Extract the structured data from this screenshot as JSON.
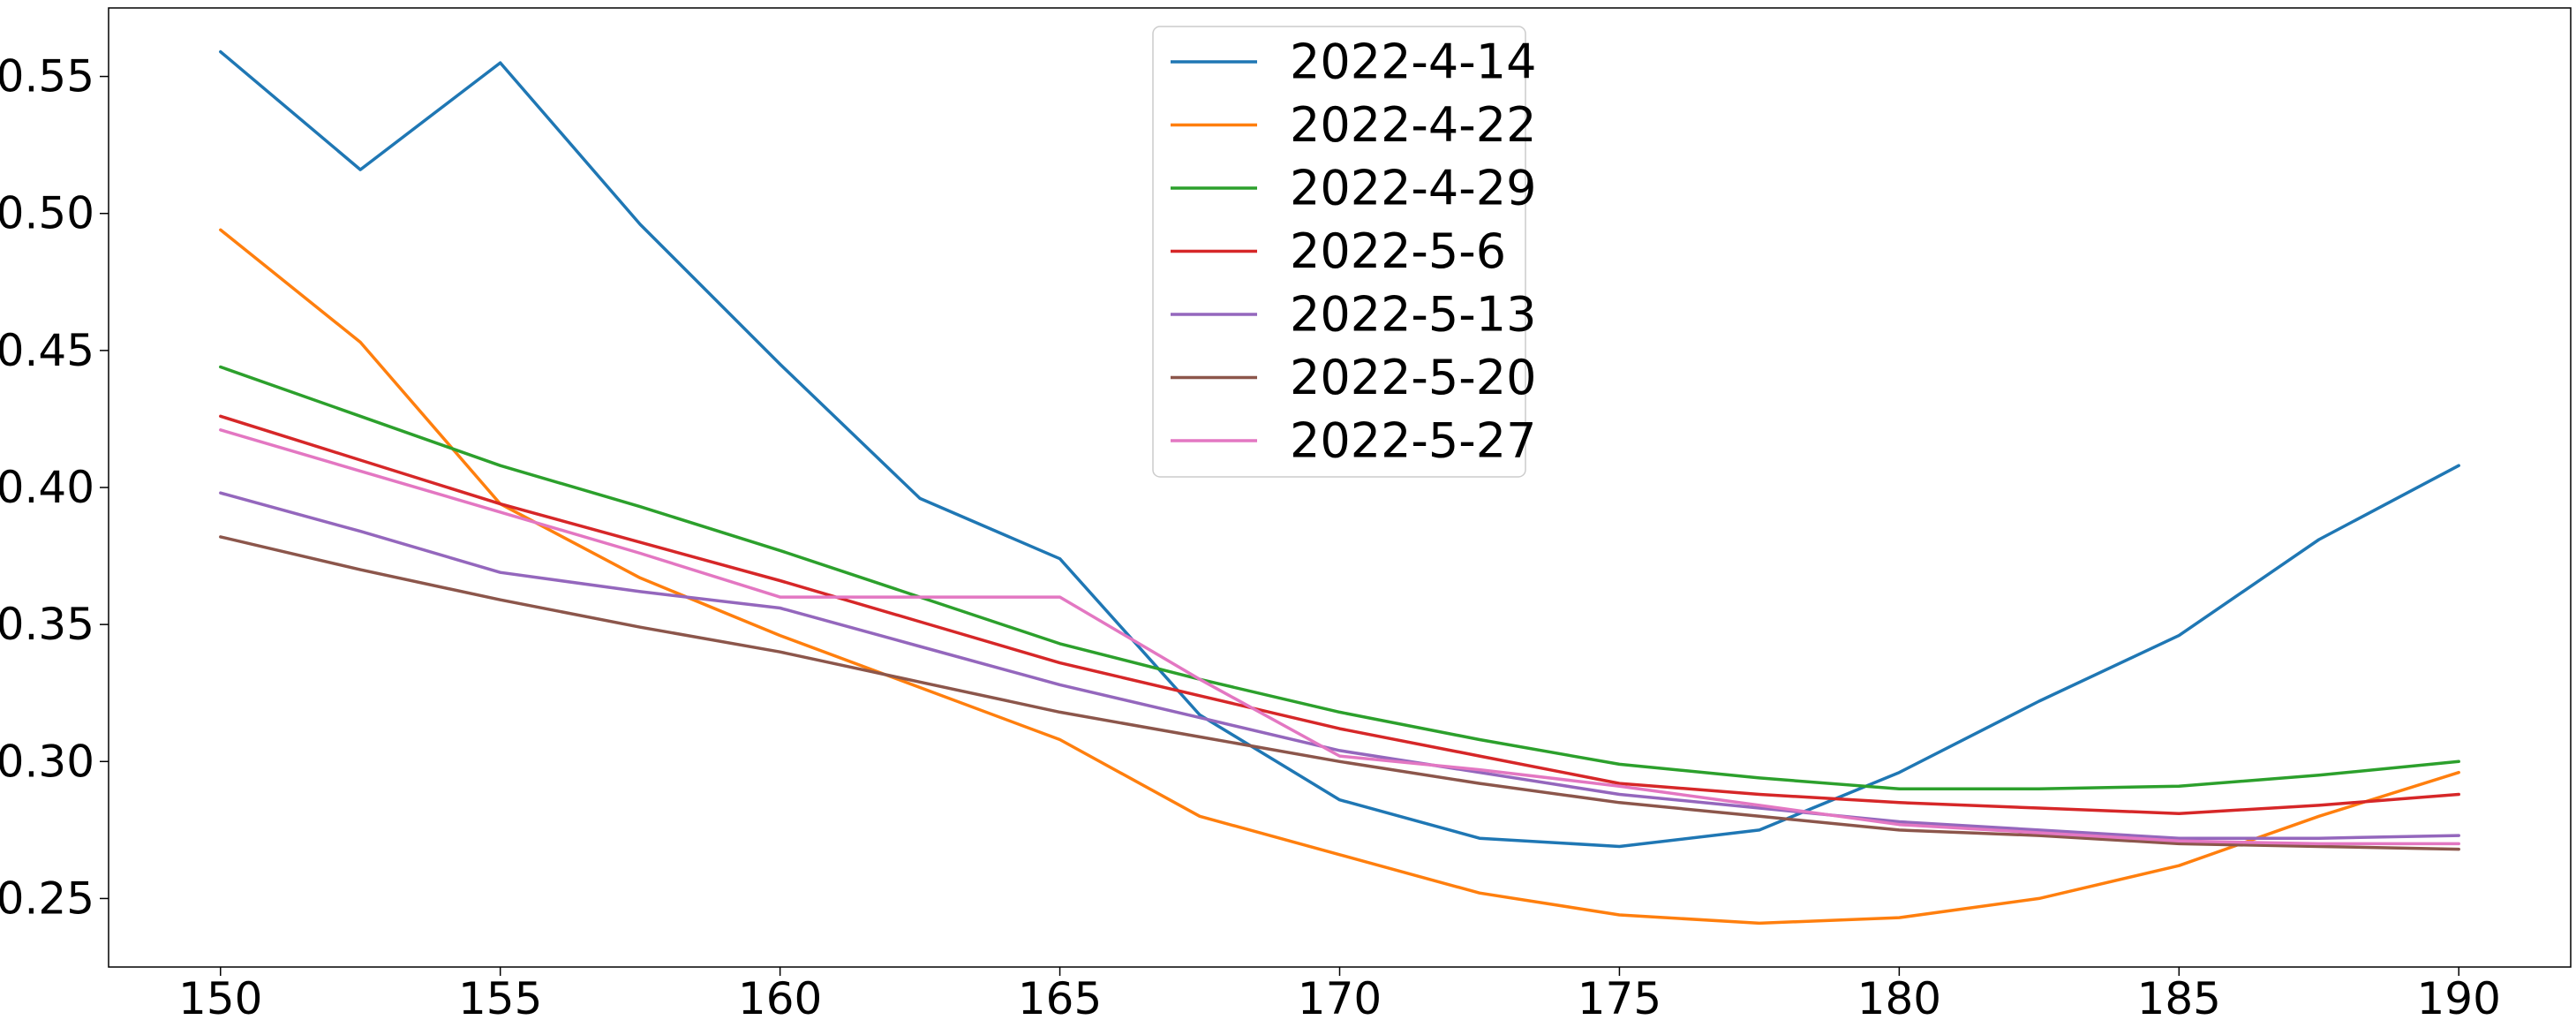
{
  "chart_data": {
    "type": "line",
    "title": "",
    "xlabel": "",
    "ylabel": "",
    "xlim": [
      148,
      192
    ],
    "ylim": [
      0.225,
      0.575
    ],
    "xticks": [
      150,
      155,
      160,
      165,
      170,
      175,
      180,
      185,
      190
    ],
    "yticks": [
      0.25,
      0.3,
      0.35,
      0.4,
      0.45,
      0.5,
      0.55
    ],
    "ytick_labels": [
      "0.25",
      "0.30",
      "0.35",
      "0.40",
      "0.45",
      "0.50",
      "0.55"
    ],
    "grid": false,
    "legend_position": "upper center",
    "x": [
      150,
      152.5,
      155,
      157.5,
      160,
      162.5,
      165,
      167.5,
      170,
      172.5,
      175,
      177.5,
      180,
      182.5,
      185,
      187.5,
      190
    ],
    "series": [
      {
        "name": "2022-4-14",
        "color": "#1f77b4",
        "values": [
          0.559,
          0.516,
          0.555,
          0.496,
          0.445,
          0.396,
          0.374,
          0.317,
          0.286,
          0.272,
          0.269,
          0.275,
          0.296,
          0.322,
          0.346,
          0.381,
          0.408
        ]
      },
      {
        "name": "2022-4-22",
        "color": "#ff7f0e",
        "values": [
          0.494,
          0.453,
          0.394,
          0.367,
          0.346,
          0.327,
          0.308,
          0.28,
          0.266,
          0.252,
          0.244,
          0.241,
          0.243,
          0.25,
          0.262,
          0.28,
          0.296
        ]
      },
      {
        "name": "2022-4-29",
        "color": "#2ca02c",
        "values": [
          0.444,
          0.426,
          0.408,
          0.393,
          0.377,
          0.36,
          0.343,
          0.33,
          0.318,
          0.308,
          0.299,
          0.294,
          0.29,
          0.29,
          0.291,
          0.295,
          0.3
        ]
      },
      {
        "name": "2022-5-6",
        "color": "#d62728",
        "values": [
          0.426,
          0.41,
          0.394,
          0.38,
          0.366,
          0.351,
          0.336,
          0.324,
          0.312,
          0.302,
          0.292,
          0.288,
          0.285,
          0.283,
          0.281,
          0.284,
          0.288
        ]
      },
      {
        "name": "2022-5-13",
        "color": "#9467bd",
        "values": [
          0.398,
          0.384,
          0.369,
          0.362,
          0.356,
          0.342,
          0.328,
          0.316,
          0.304,
          0.296,
          0.288,
          0.283,
          0.278,
          0.275,
          0.272,
          0.272,
          0.273
        ]
      },
      {
        "name": "2022-5-20",
        "color": "#8c564b",
        "values": [
          0.382,
          0.37,
          0.359,
          0.349,
          0.34,
          0.329,
          0.318,
          0.309,
          0.3,
          0.292,
          0.285,
          0.28,
          0.275,
          0.273,
          0.27,
          0.269,
          0.268
        ]
      },
      {
        "name": "2022-5-27",
        "color": "#e377c2",
        "values": [
          0.421,
          0.406,
          0.391,
          0.376,
          0.36,
          0.36,
          0.36,
          0.33,
          0.302,
          0.297,
          0.291,
          0.284,
          0.277,
          0.274,
          0.271,
          0.27,
          0.27
        ]
      }
    ]
  }
}
